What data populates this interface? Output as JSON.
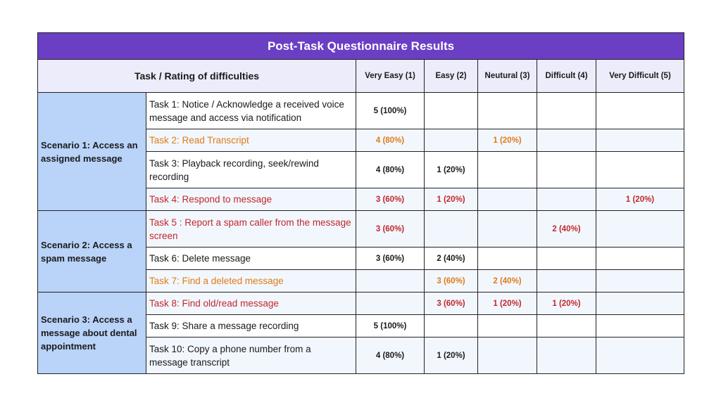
{
  "title": "Post-Task Questionnaire Results",
  "headers": {
    "task": "Task / Rating of difficulties",
    "ratings": [
      "Very Easy (1)",
      "Easy (2)",
      "Neutural (3)",
      "Difficult (4)",
      "Very Difficult (5)"
    ]
  },
  "colors": {
    "title_bg": "#6a3fc4",
    "orange": "#e07b18",
    "red": "#c0282c",
    "scenario_bg": "#b9d3f9"
  },
  "scenarios": [
    {
      "label": "Scenario  1: Access an assigned message",
      "tasks": [
        {
          "label": "Task 1: Notice / Acknowledge a received voice message and access via notification",
          "color": "default",
          "ratings": [
            "5 (100%)",
            "",
            "",
            "",
            ""
          ]
        },
        {
          "label": "Task 2: Read Transcript",
          "color": "orange",
          "ratings": [
            "4 (80%)",
            "",
            "1 (20%)",
            "",
            ""
          ]
        },
        {
          "label": "Task 3: Playback recording, seek/rewind recording",
          "color": "default",
          "ratings": [
            "4 (80%)",
            "1 (20%)",
            "",
            "",
            ""
          ]
        },
        {
          "label": "Task 4: Respond to message",
          "color": "red",
          "ratings": [
            "3 (60%)",
            "1 (20%)",
            "",
            "",
            "1 (20%)"
          ]
        }
      ]
    },
    {
      "label": "Scenario 2: Access a spam message",
      "tasks": [
        {
          "label": "Task 5 : Report a spam caller from the message screen",
          "color": "red",
          "ratings": [
            "3 (60%)",
            "",
            "",
            "2 (40%)",
            ""
          ]
        },
        {
          "label": "Task 6: Delete message",
          "color": "default",
          "ratings": [
            "3 (60%)",
            "2 (40%)",
            "",
            "",
            ""
          ]
        },
        {
          "label": "Task 7: Find a deleted message",
          "color": "orange",
          "ratings": [
            "",
            "3 (60%)",
            "2 (40%)",
            "",
            ""
          ]
        }
      ]
    },
    {
      "label": "Scenario 3: Access a message about dental appointment",
      "tasks": [
        {
          "label": "Task 8: Find old/read message",
          "color": "red",
          "ratings": [
            "",
            "3 (60%)",
            "1 (20%)",
            "1 (20%)",
            ""
          ]
        },
        {
          "label": "Task 9: Share a message recording",
          "color": "default",
          "ratings": [
            "5 (100%)",
            "",
            "",
            "",
            ""
          ]
        },
        {
          "label": "Task 10: Copy a phone number from a message transcript",
          "color": "default",
          "ratings": [
            "4 (80%)",
            "1 (20%)",
            "",
            "",
            ""
          ]
        }
      ]
    }
  ]
}
